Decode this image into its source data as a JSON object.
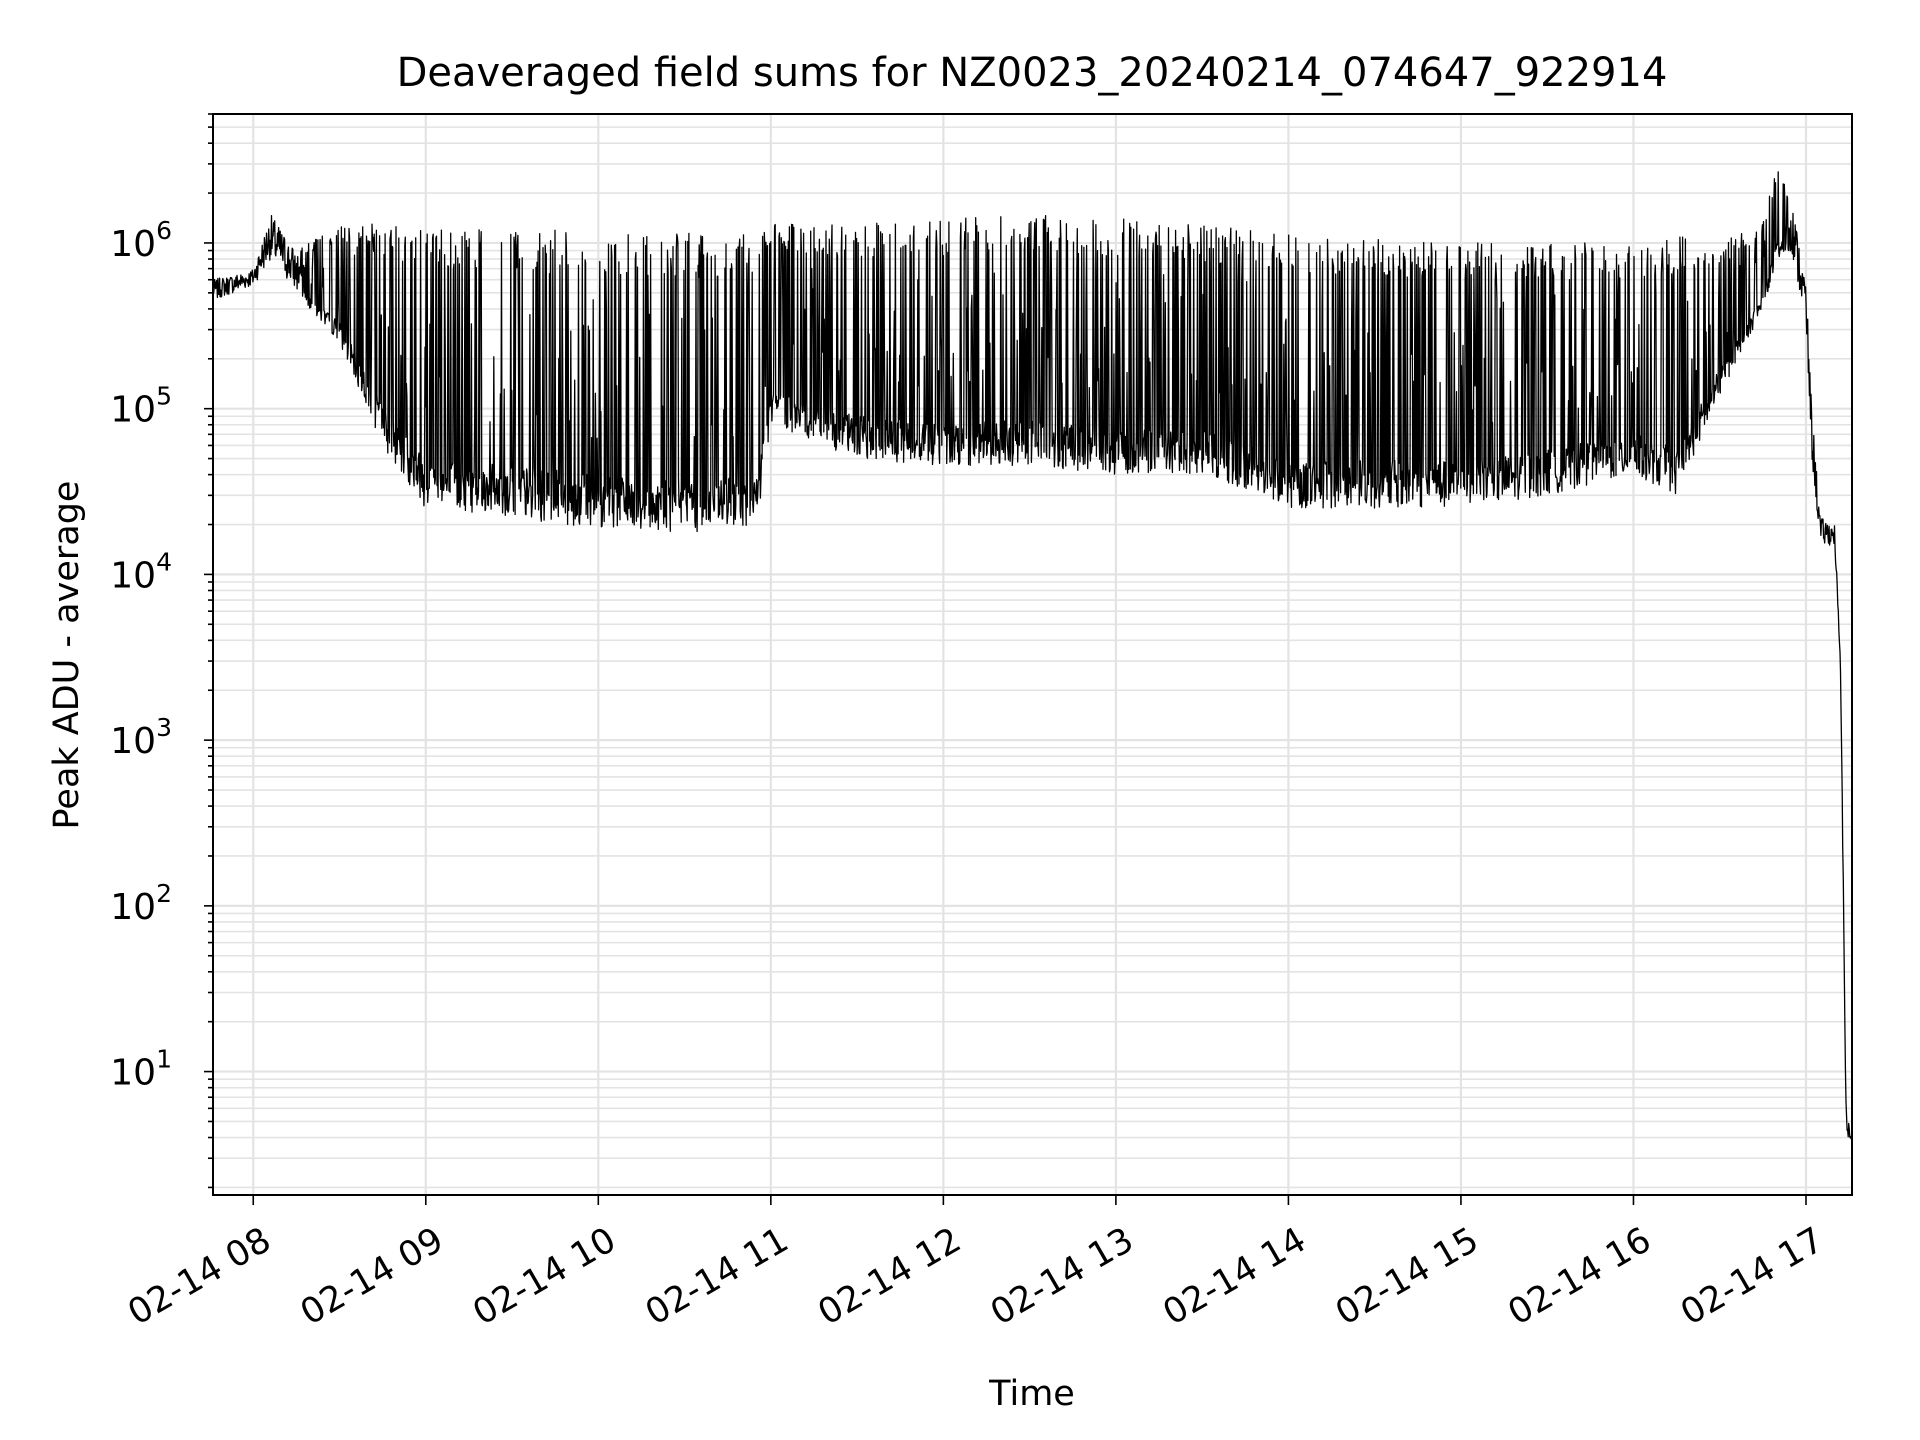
{
  "chart_data": {
    "type": "line",
    "title": "Deaveraged field sums for NZ0023_20240214_074647_922914",
    "xlabel": "Time",
    "ylabel": "Peak ADU - average",
    "xlim": [
      "2024-02-14 07:46",
      "2024-02-14 17:16"
    ],
    "ylim": [
      1.8,
      6000000
    ],
    "yscale": "log",
    "grid": true,
    "line_color": "#000000",
    "x_ticks": [
      "02-14 08",
      "02-14 09",
      "02-14 10",
      "02-14 11",
      "02-14 12",
      "02-14 13",
      "02-14 14",
      "02-14 15",
      "02-14 16",
      "02-14 17"
    ],
    "y_ticks": [
      {
        "base": "10",
        "exp": "1"
      },
      {
        "base": "10",
        "exp": "2"
      },
      {
        "base": "10",
        "exp": "3"
      },
      {
        "base": "10",
        "exp": "4"
      },
      {
        "base": "10",
        "exp": "5"
      },
      {
        "base": "10",
        "exp": "6"
      }
    ],
    "trend_points": [
      {
        "x": "2024-02-14 07:46",
        "low": 450000,
        "high": 600000
      },
      {
        "x": "2024-02-14 08:00",
        "low": 550000,
        "high": 700000
      },
      {
        "x": "2024-02-14 08:06",
        "low": 800000,
        "high": 1500000
      },
      {
        "x": "2024-02-14 08:15",
        "low": 500000,
        "high": 900000
      },
      {
        "x": "2024-02-14 08:30",
        "low": 250000,
        "high": 1300000
      },
      {
        "x": "2024-02-14 08:45",
        "low": 60000,
        "high": 1300000
      },
      {
        "x": "2024-02-14 09:00",
        "low": 25000,
        "high": 1200000
      },
      {
        "x": "2024-02-14 09:30",
        "low": 22000,
        "high": 1200000
      },
      {
        "x": "2024-02-14 10:00",
        "low": 19000,
        "high": 1200000
      },
      {
        "x": "2024-02-14 10:30",
        "low": 18000,
        "high": 1150000
      },
      {
        "x": "2024-02-14 10:55",
        "low": 18000,
        "high": 1200000
      },
      {
        "x": "2024-02-14 11:00",
        "low": 80000,
        "high": 1300000
      },
      {
        "x": "2024-02-14 11:30",
        "low": 50000,
        "high": 1300000
      },
      {
        "x": "2024-02-14 12:00",
        "low": 45000,
        "high": 1400000
      },
      {
        "x": "2024-02-14 12:30",
        "low": 45000,
        "high": 1500000
      },
      {
        "x": "2024-02-14 13:00",
        "low": 40000,
        "high": 1400000
      },
      {
        "x": "2024-02-14 13:30",
        "low": 40000,
        "high": 1300000
      },
      {
        "x": "2024-02-14 14:00",
        "low": 25000,
        "high": 1150000
      },
      {
        "x": "2024-02-14 14:30",
        "low": 25000,
        "high": 1050000
      },
      {
        "x": "2024-02-14 15:00",
        "low": 25000,
        "high": 1000000
      },
      {
        "x": "2024-02-14 15:30",
        "low": 30000,
        "high": 1000000
      },
      {
        "x": "2024-02-14 16:00",
        "low": 40000,
        "high": 1000000
      },
      {
        "x": "2024-02-14 16:15",
        "low": 30000,
        "high": 1100000
      },
      {
        "x": "2024-02-14 16:30",
        "low": 120000,
        "high": 1000000
      },
      {
        "x": "2024-02-14 16:45",
        "low": 400000,
        "high": 1300000
      },
      {
        "x": "2024-02-14 16:50",
        "low": 800000,
        "high": 3000000
      },
      {
        "x": "2024-02-14 16:55",
        "low": 900000,
        "high": 1800000
      },
      {
        "x": "2024-02-14 17:00",
        "low": 300000,
        "high": 600000
      },
      {
        "x": "2024-02-14 17:02",
        "low": 50000,
        "high": 100000
      },
      {
        "x": "2024-02-14 17:05",
        "low": 15000,
        "high": 22000
      },
      {
        "x": "2024-02-14 17:10",
        "low": 15000,
        "high": 20000
      },
      {
        "x": "2024-02-14 17:12",
        "low": 2500,
        "high": 3000
      },
      {
        "x": "2024-02-14 17:14",
        "low": 4,
        "high": 6
      },
      {
        "x": "2024-02-14 17:16",
        "low": 3.8,
        "high": 3.8
      }
    ]
  }
}
